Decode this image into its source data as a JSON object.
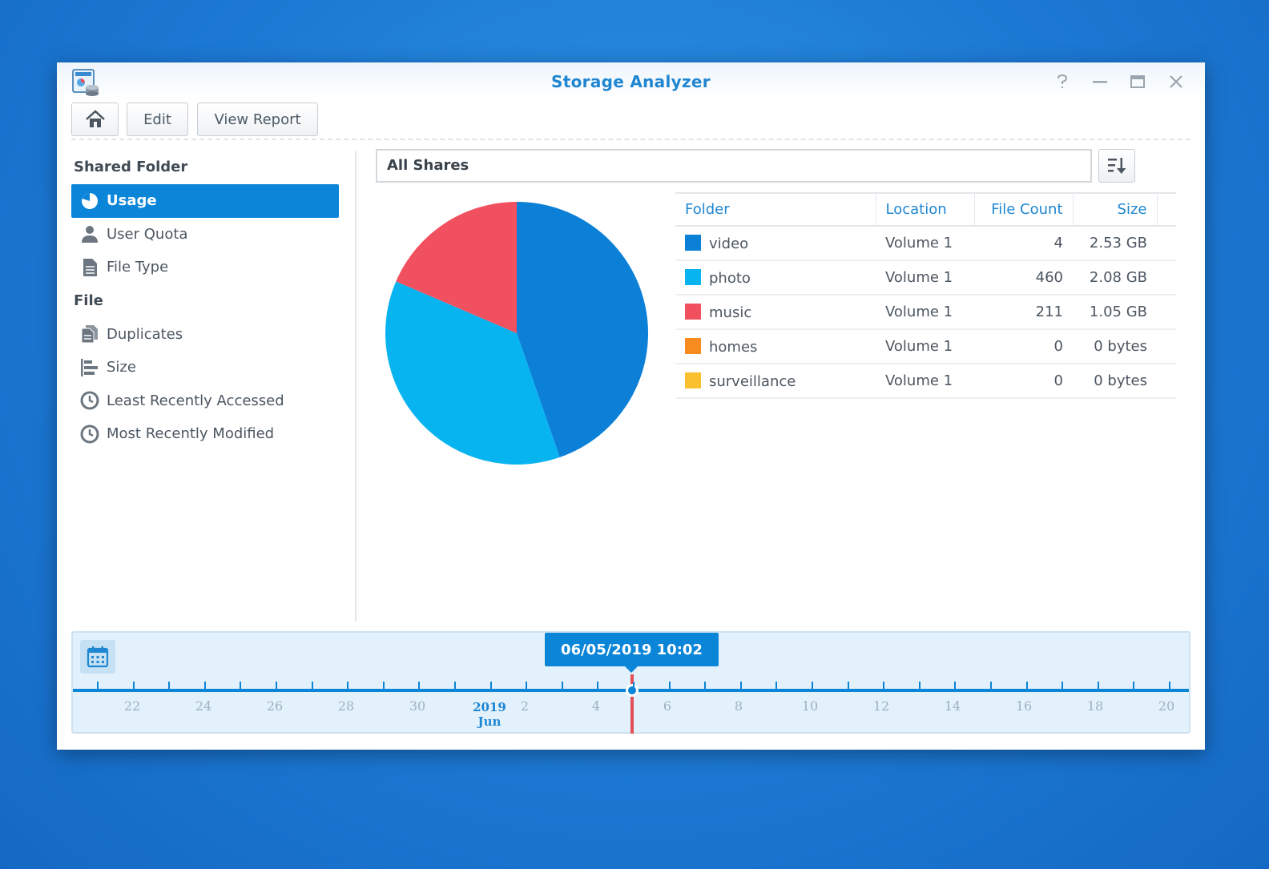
{
  "window": {
    "title": "Storage Analyzer",
    "controls": [
      "help-icon",
      "minimize-icon",
      "maximize-icon",
      "close-icon"
    ]
  },
  "toolbar": {
    "home_icon": "home-icon",
    "edit_label": "Edit",
    "view_report_label": "View Report"
  },
  "sidebar": {
    "sections": [
      {
        "heading": "Shared Folder",
        "items": [
          {
            "label": "Usage",
            "icon": "pie-chart-icon",
            "active": true
          },
          {
            "label": "User Quota",
            "icon": "user-icon",
            "active": false
          },
          {
            "label": "File Type",
            "icon": "document-icon",
            "active": false
          }
        ]
      },
      {
        "heading": "File",
        "items": [
          {
            "label": "Duplicates",
            "icon": "duplicate-files-icon",
            "active": false
          },
          {
            "label": "Size",
            "icon": "bar-size-icon",
            "active": false
          },
          {
            "label": "Least Recently Accessed",
            "icon": "clock-icon",
            "active": false
          },
          {
            "label": "Most Recently Modified",
            "icon": "clock-icon",
            "active": false
          }
        ]
      }
    ]
  },
  "main": {
    "share_selector": "All Shares",
    "sort_icon": "sort-descending-icon",
    "table": {
      "columns": [
        "Folder",
        "Location",
        "File Count",
        "Size"
      ],
      "rows": [
        {
          "folder": "video",
          "location": "Volume 1",
          "file_count": "4",
          "size": "2.53 GB",
          "color": "#0b80d6"
        },
        {
          "folder": "photo",
          "location": "Volume 1",
          "file_count": "460",
          "size": "2.08 GB",
          "color": "#08b4f0"
        },
        {
          "folder": "music",
          "location": "Volume 1",
          "file_count": "211",
          "size": "1.05 GB",
          "color": "#f1505f"
        },
        {
          "folder": "homes",
          "location": "Volume 1",
          "file_count": "0",
          "size": "0 bytes",
          "color": "#f78b20"
        },
        {
          "folder": "surveillance",
          "location": "Volume 1",
          "file_count": "0",
          "size": "0 bytes",
          "color": "#fbc02d"
        }
      ]
    }
  },
  "chart_data": {
    "type": "pie",
    "categories": [
      "video",
      "photo",
      "music",
      "homes",
      "surveillance"
    ],
    "values": [
      2.53,
      2.08,
      1.05,
      0,
      0
    ],
    "colors": [
      "#0b80d6",
      "#08b4f0",
      "#f1505f",
      "#f78b20",
      "#fbc02d"
    ]
  },
  "timeline": {
    "calendar_icon": "calendar-icon",
    "selected_datetime": "06/05/2019 10:02",
    "tick_labels": [
      "22",
      "24",
      "26",
      "28",
      "30",
      "2",
      "4",
      "6",
      "8",
      "10",
      "12",
      "14",
      "16",
      "18",
      "20"
    ],
    "month_year": "2019",
    "month_name": "Jun"
  }
}
